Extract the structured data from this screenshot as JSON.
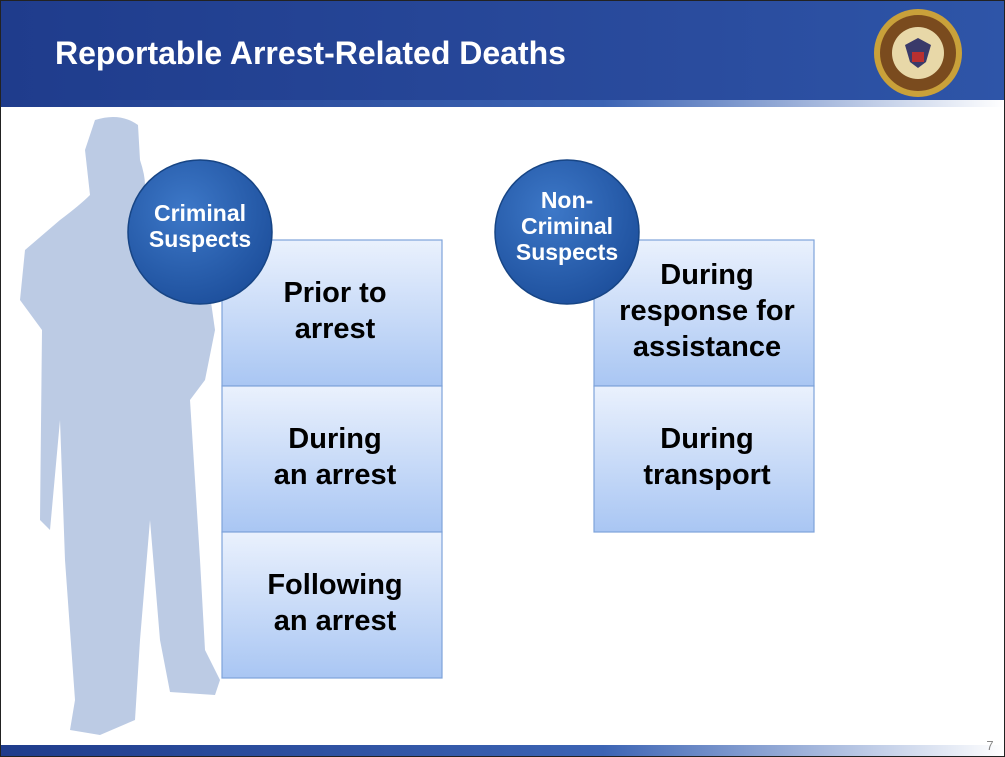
{
  "header": {
    "title": "Reportable Arrest-Related Deaths"
  },
  "groups": [
    {
      "label_lines": [
        "Criminal",
        "Suspects"
      ],
      "boxes": [
        [
          "Prior to",
          "arrest"
        ],
        [
          "During",
          "an arrest"
        ],
        [
          "Following",
          "an arrest"
        ]
      ]
    },
    {
      "label_lines": [
        "Non-",
        "Criminal",
        "Suspects"
      ],
      "boxes": [
        [
          "During",
          "response for",
          "assistance"
        ],
        [
          "During",
          "transport"
        ]
      ]
    }
  ],
  "footer": {
    "page_number": "7"
  }
}
